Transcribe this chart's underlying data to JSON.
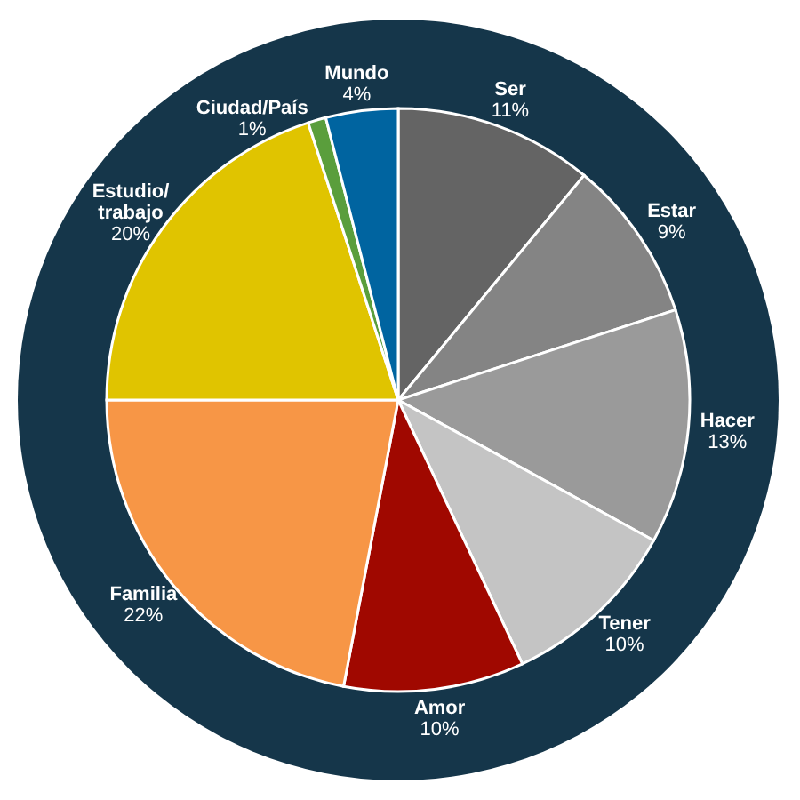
{
  "chart_data": {
    "type": "pie",
    "categories": [
      "Ser",
      "Estar",
      "Hacer",
      "Tener",
      "Amor",
      "Familia",
      "Estudio/\ntrabajo",
      "Ciudad/País",
      "Mundo"
    ],
    "values": [
      11,
      9,
      13,
      10,
      10,
      22,
      20,
      1,
      4
    ],
    "colors": [
      "#646464",
      "#848484",
      "#9a9a9a",
      "#c4c4c4",
      "#a00800",
      "#f79646",
      "#e0c400",
      "#5a9e3c",
      "#0064a0"
    ],
    "value_labels": [
      "11%",
      "9%",
      "13%",
      "10%",
      "10%",
      "22%",
      "20%",
      "1%",
      "4%"
    ]
  }
}
